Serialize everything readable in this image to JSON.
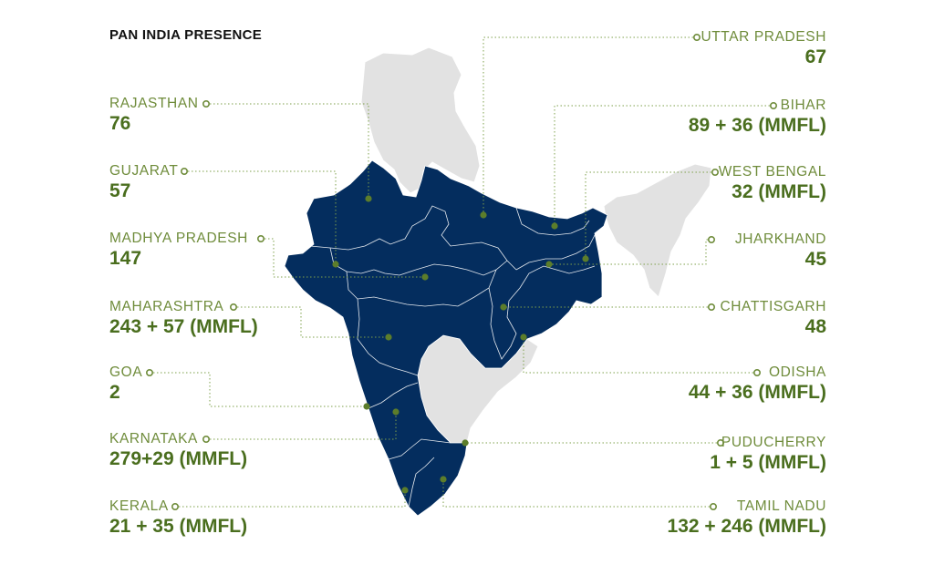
{
  "title": "PAN INDIA PRESENCE",
  "colors": {
    "presence": "#042d5e",
    "other": "#e2e2e2",
    "accent": "#5c7d2b",
    "line": "#7ea04b"
  },
  "left": [
    {
      "name": "RAJASTHAN",
      "value": "76"
    },
    {
      "name": "GUJARAT",
      "value": "57"
    },
    {
      "name": "MADHYA PRADESH",
      "value": "147"
    },
    {
      "name": "MAHARASHTRA",
      "value": "243 + 57 (MMFL)"
    },
    {
      "name": "GOA",
      "value": "2"
    },
    {
      "name": "KARNATAKA",
      "value": "279+29 (MMFL)"
    },
    {
      "name": "KERALA",
      "value": "21 + 35 (MMFL)"
    }
  ],
  "right": [
    {
      "name": "UTTAR PRADESH",
      "value": "67"
    },
    {
      "name": "BIHAR",
      "value": "89 + 36 (MMFL)"
    },
    {
      "name": "WEST BENGAL",
      "value": "32 (MMFL)"
    },
    {
      "name": "JHARKHAND",
      "value": "45"
    },
    {
      "name": "CHATTISGARH",
      "value": "48"
    },
    {
      "name": "ODISHA",
      "value": "44 + 36 (MMFL)"
    },
    {
      "name": "PUDUCHERRY",
      "value": "1 + 5 (MMFL)"
    },
    {
      "name": "TAMIL NADU",
      "value": "132 + 246 (MMFL)"
    }
  ]
}
